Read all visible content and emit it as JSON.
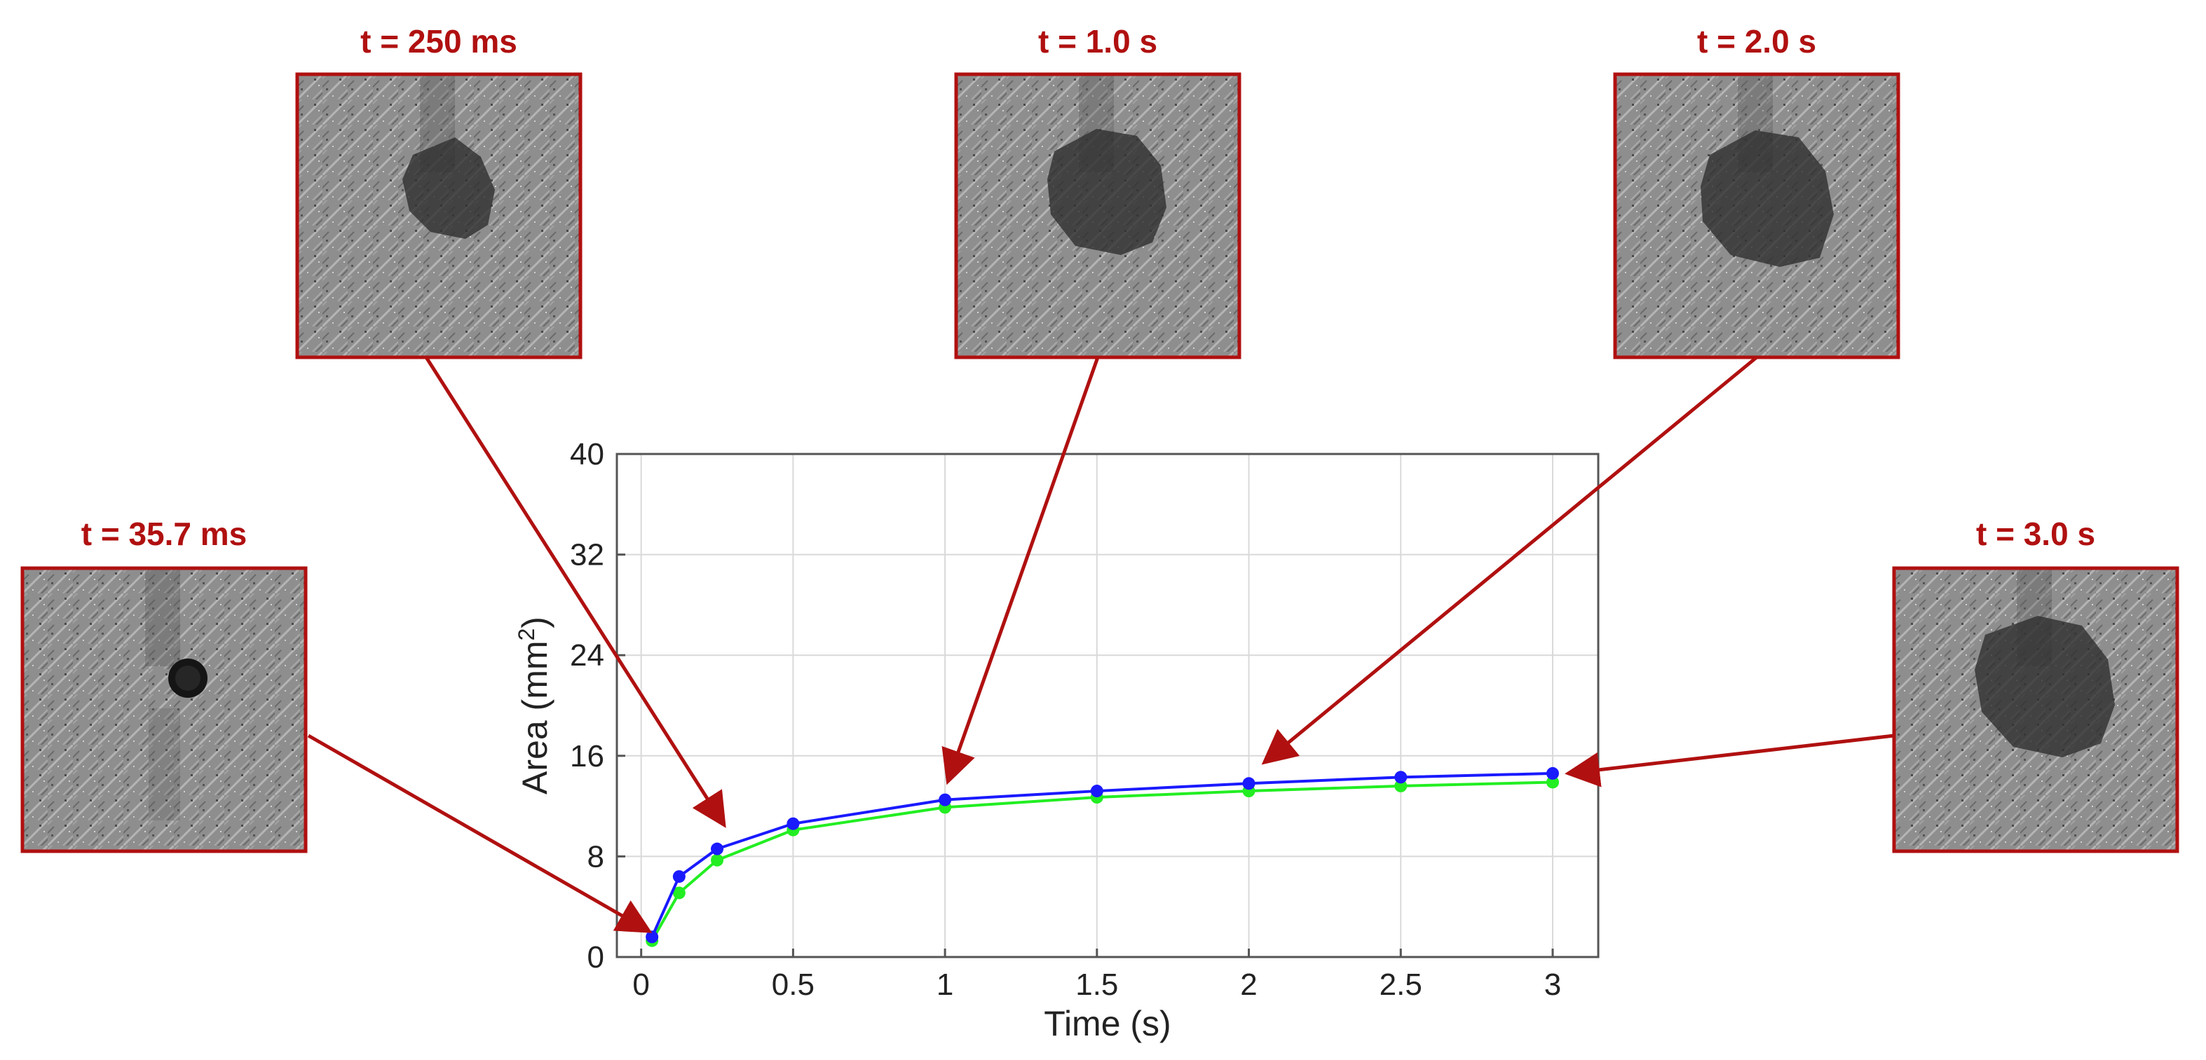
{
  "colors": {
    "annotation": "#b01010",
    "series_blue": "#1a1aff",
    "series_green": "#22ee22",
    "grid": "#d9d9d9",
    "axes": "#555555",
    "frame_gray_base": "#8c8c8c"
  },
  "snapshots": [
    {
      "label": "t = 35.7 ms",
      "time": 0.0357,
      "feature": "small-dark-spot"
    },
    {
      "label": "t = 250 ms",
      "time": 0.25,
      "feature": "dark-blob"
    },
    {
      "label": "t = 1.0 s",
      "time": 1.0,
      "feature": "dark-blob"
    },
    {
      "label": "t = 2.0 s",
      "time": 2.0,
      "feature": "dark-blob"
    },
    {
      "label": "t = 3.0 s",
      "time": 3.0,
      "feature": "dark-blob"
    }
  ],
  "chart_data": {
    "type": "line",
    "xlabel": "Time (s)",
    "ylabel_main": "Area (mm",
    "ylabel_sup": "2",
    "ylabel_close": ")",
    "xlim": [
      -0.08,
      3.15
    ],
    "ylim": [
      0,
      40
    ],
    "xticks": [
      0,
      0.5,
      1,
      1.5,
      2,
      2.5,
      3
    ],
    "xtick_labels": [
      "0",
      "0.5",
      "1",
      "1.5",
      "2",
      "2.5",
      "3"
    ],
    "yticks": [
      0,
      8,
      16,
      24,
      32,
      40
    ],
    "ytick_labels": [
      "0",
      "8",
      "16",
      "24",
      "32",
      "40"
    ],
    "grid": true,
    "legend": "none",
    "series": [
      {
        "color": "#1a1aff",
        "x": [
          0.0357,
          0.125,
          0.25,
          0.5,
          1.0,
          1.5,
          2.0,
          2.5,
          3.0
        ],
        "y": [
          1.6,
          6.4,
          8.6,
          10.6,
          12.5,
          13.2,
          13.8,
          14.3,
          14.6
        ]
      },
      {
        "color": "#22ee22",
        "x": [
          0.0357,
          0.125,
          0.25,
          0.5,
          1.0,
          1.5,
          2.0,
          2.5,
          3.0
        ],
        "y": [
          1.3,
          5.1,
          7.7,
          10.1,
          11.9,
          12.7,
          13.2,
          13.6,
          13.9
        ]
      }
    ]
  }
}
